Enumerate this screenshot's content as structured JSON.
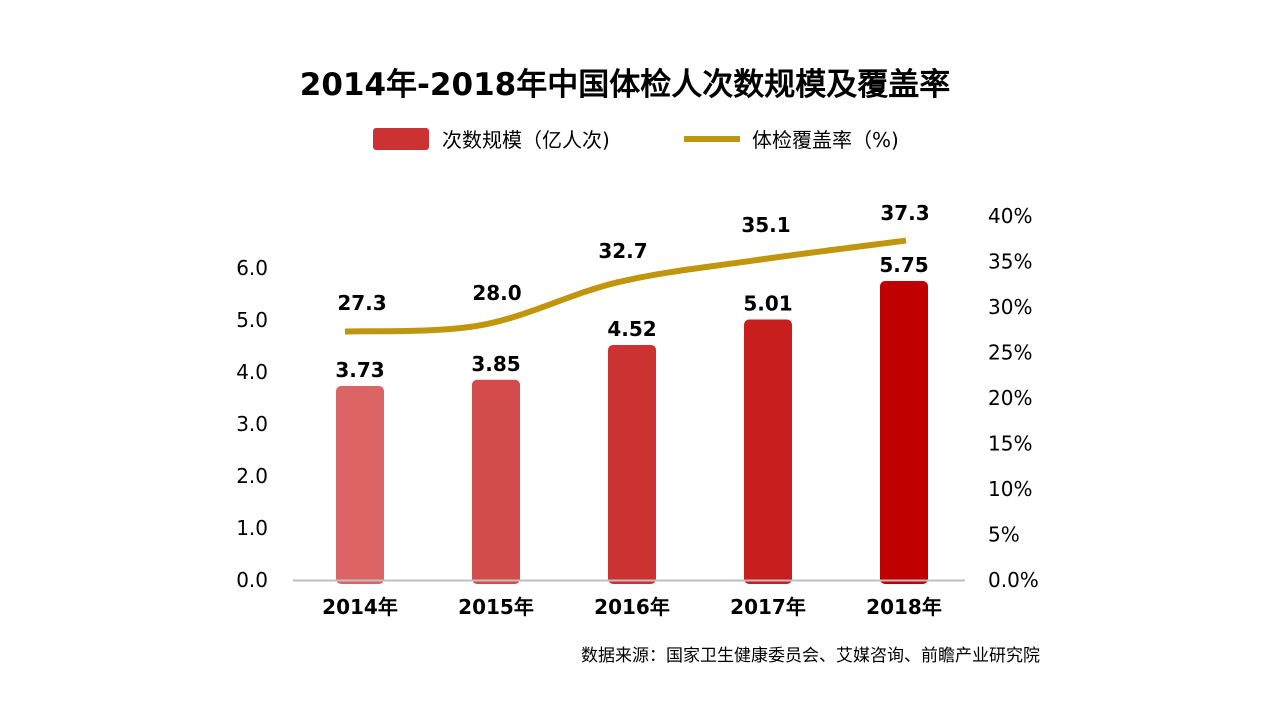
{
  "chart_data": {
    "type": "bar",
    "title": "2014年-2018年中国体检人次数规模及覆盖率",
    "categories": [
      "2014年",
      "2015年",
      "2016年",
      "2017年",
      "2018年"
    ],
    "series": [
      {
        "name": "次数规模（亿人次)",
        "type": "bar",
        "axis": "left",
        "values": [
          3.73,
          3.85,
          4.52,
          5.01,
          5.75
        ],
        "labels": [
          "3.73",
          "3.85",
          "4.52",
          "5.01",
          "5.75"
        ],
        "colors": [
          "#dc6464",
          "#d44b4b",
          "#cc3232",
          "#c81e1e",
          "#c00000"
        ]
      },
      {
        "name": "体检覆盖率（%)",
        "type": "line",
        "axis": "right",
        "values": [
          27.3,
          28.0,
          32.7,
          35.1,
          37.3
        ],
        "labels": [
          "27.3",
          "28.0",
          "32.7",
          "35.1",
          "37.3"
        ],
        "color": "#c0960c"
      }
    ],
    "y_left": {
      "ylim": [
        0,
        6
      ],
      "ticks": [
        "0.0",
        "1.0",
        "2.0",
        "3.0",
        "4.0",
        "5.0",
        "6.0"
      ]
    },
    "y_right": {
      "ylim": [
        0,
        40
      ],
      "ticks": [
        "0.0%",
        "5%",
        "10%",
        "15%",
        "20%",
        "25%",
        "30%",
        "35%",
        "40%"
      ]
    },
    "legend_position": "top-center",
    "grid": false,
    "axis_color": "#bfbfbf"
  },
  "source": "数据来源：国家卫生健康委员会、艾媒咨询、前瞻产业研究院"
}
